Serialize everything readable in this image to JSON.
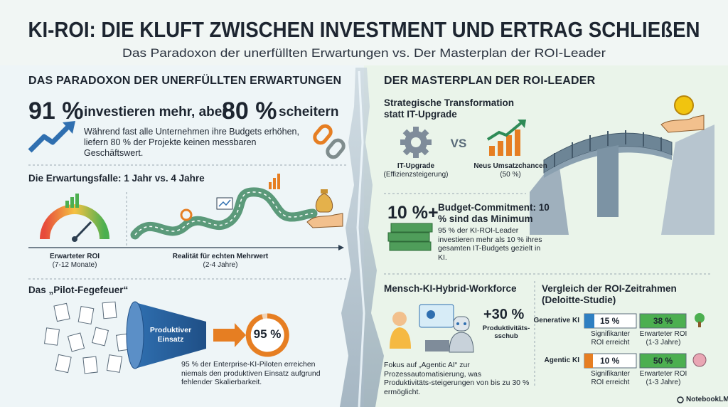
{
  "header": {
    "title": "KI-ROI: DIE KLUFT ZWISCHEN INVESTMENT UND ERTRAG SCHLIEßEN",
    "subtitle": "Das Paradoxon der unerfüllten Erwartungen vs. Der Masterplan der ROI-Leader"
  },
  "left": {
    "heading": "DAS PARADOXON DER UNERFÜLLTEN ERWARTUNGEN",
    "stat": {
      "value1": "91 %",
      "text1": "investieren mehr, aber",
      "value2": "80 %",
      "text2": "scheitern",
      "description": "Während fast alle Unternehmen ihre Budgets erhöhen, liefern 80 % der Projekte keinen messbaren Geschäftswert."
    },
    "expectation": {
      "heading": "Die Erwartungsfalle: 1 Jahr vs. 4 Jahre",
      "expected_label": "Erwarteter ROI",
      "expected_period": "(7-12 Monate)",
      "reality_label": "Realität für echten Mehrwert",
      "reality_period": "(2-4 Jahre)"
    },
    "pilot": {
      "heading": "Das „Pilot-Fegefeuer“",
      "funnel_label": "Produktiver Einsatz",
      "value": "95 %",
      "description": "95 % der Enterprise-KI-Piloten erreichen niemals den produktiven Einsatz aufgrund fehlender Skalierbarkeit."
    }
  },
  "right": {
    "heading": "DER MASTERPLAN DER ROI-LEADER",
    "transformation": {
      "heading": "Strategische Transformation statt IT-Upgrade",
      "option1": "IT-Upgrade",
      "option1_note": "(Effizienzsteigerung)",
      "versus": "VS",
      "option2": "Neus Umsatzchancen",
      "option2_note": "(50 %)"
    },
    "budget": {
      "value": "10 %+",
      "heading": "Budget-Commitment: 10 % sind das Minimum",
      "description": "95 % der KI-ROI-Leader investieren mehr als 10 % ihres gesamten IT-Budgets gezielt in KI."
    },
    "workforce": {
      "heading": "Mensch-KI-Hybrid-Workforce",
      "value": "+30 %",
      "value_label": "Produktivitäts-sschub",
      "description": "Fokus auf „Agentic AI“ zur Prozessautomatisierung, was Produktivitäts-steigerungen von bis zu 30 % ermöglicht."
    },
    "comparison": {
      "heading": "Vergleich der ROI-Zeitrahmen (Deloitte-Studie)",
      "achieved_label": "Signifikanter ROI erreicht",
      "expected_label": "Erwarteter ROI (1-3 Jahre)",
      "rows": [
        {
          "name": "Generative KI",
          "achieved": "15 %",
          "expected": "38 %"
        },
        {
          "name": "Agentic KI",
          "achieved": "10 %",
          "expected": "50 %"
        }
      ]
    }
  },
  "footer": {
    "brand": "NotebookLM"
  }
}
